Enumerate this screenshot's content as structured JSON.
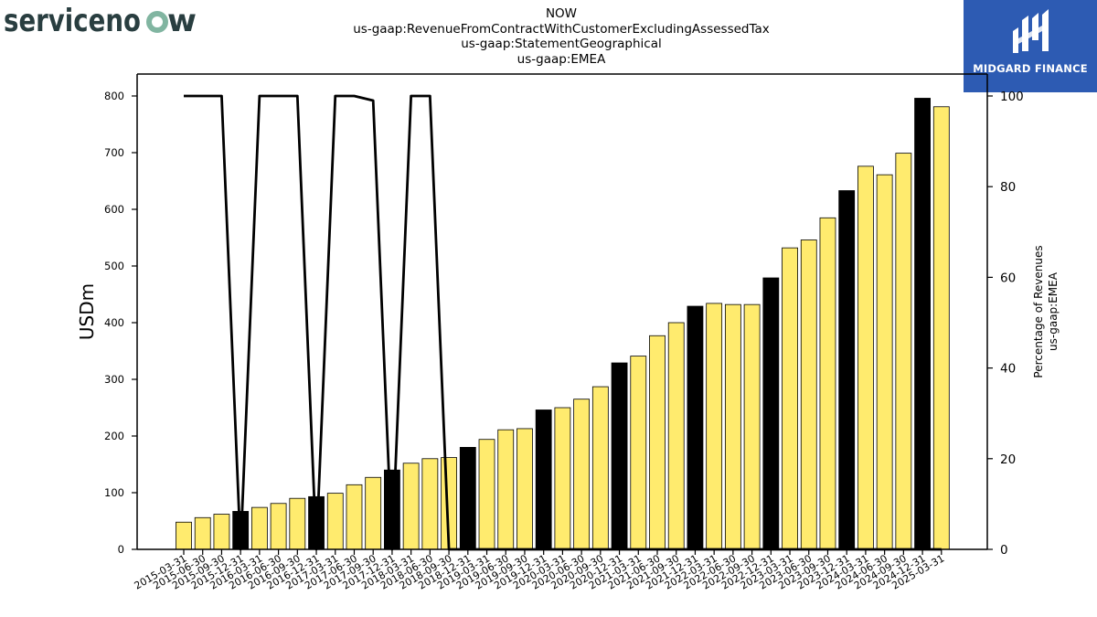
{
  "header": {
    "left_logo_text": "servicenow",
    "right_logo_text": "MIDGARD FINANCE",
    "title_lines": [
      "NOW",
      "us-gaap:RevenueFromContractWithCustomerExcludingAssessedTax",
      "us-gaap:StatementGeographical",
      "us-gaap:EMEA"
    ]
  },
  "chart_data": {
    "type": "bar",
    "title": "NOW us-gaap:RevenueFromContractWithCustomerExcludingAssessedTax us-gaap:StatementGeographical us-gaap:EMEA",
    "ylabel": "USDm",
    "y2label_lines": [
      "Percentage of Revenues",
      "us-gaap:EMEA"
    ],
    "ylim": [
      0,
      840
    ],
    "y2lim": [
      0,
      105
    ],
    "yticks": [
      0,
      100,
      200,
      300,
      400,
      500,
      600,
      700,
      800
    ],
    "y2ticks": [
      0,
      20,
      40,
      60,
      80,
      100
    ],
    "colors": {
      "quarter_bar": "#ffeb6e",
      "year_end_bar": "#000000",
      "line": "#000000"
    },
    "categories": [
      "2015-03-31",
      "2015-06-30",
      "2015-09-30",
      "2015-12-31",
      "2016-03-31",
      "2016-06-30",
      "2016-09-30",
      "2016-12-31",
      "2017-03-31",
      "2017-06-30",
      "2017-09-30",
      "2017-12-31",
      "2018-03-31",
      "2018-06-30",
      "2018-09-30",
      "2018-12-31",
      "2019-03-31",
      "2019-06-30",
      "2019-09-30",
      "2019-12-31",
      "2020-03-31",
      "2020-06-30",
      "2020-09-30",
      "2020-12-31",
      "2021-03-31",
      "2021-06-30",
      "2021-09-30",
      "2021-12-31",
      "2022-03-31",
      "2022-06-30",
      "2022-09-30",
      "2022-12-31",
      "2023-03-31",
      "2023-06-30",
      "2023-09-30",
      "2023-12-31",
      "2024-03-31",
      "2024-06-30",
      "2024-09-30",
      "2024-12-31",
      "2025-03-31"
    ],
    "series": [
      {
        "kind": "bar",
        "values": [
          48,
          56,
          62,
          67,
          74,
          81,
          90,
          93,
          99,
          114,
          127,
          140,
          152,
          160,
          162,
          180,
          194,
          211,
          213,
          246,
          250,
          265,
          287,
          329,
          341,
          377,
          400,
          429,
          434,
          432,
          432,
          479,
          532,
          546,
          585,
          633,
          676,
          661,
          699,
          796,
          781
        ],
        "year_end": [
          false,
          false,
          false,
          true,
          false,
          false,
          false,
          true,
          false,
          false,
          false,
          true,
          false,
          false,
          false,
          true,
          false,
          false,
          false,
          true,
          false,
          false,
          false,
          true,
          false,
          false,
          false,
          true,
          false,
          false,
          false,
          true,
          false,
          false,
          false,
          true,
          false,
          false,
          false,
          true,
          false
        ]
      },
      {
        "kind": "line",
        "axis": "right",
        "values": [
          100,
          100,
          100,
          0,
          100,
          100,
          100,
          0,
          100,
          100,
          99,
          0,
          100,
          100,
          0,
          0,
          0,
          0,
          0,
          0,
          0,
          0,
          0,
          0,
          0,
          0,
          0,
          0,
          0,
          0,
          0,
          0,
          0,
          0,
          0,
          0,
          0,
          0,
          0,
          0,
          0
        ]
      }
    ]
  }
}
